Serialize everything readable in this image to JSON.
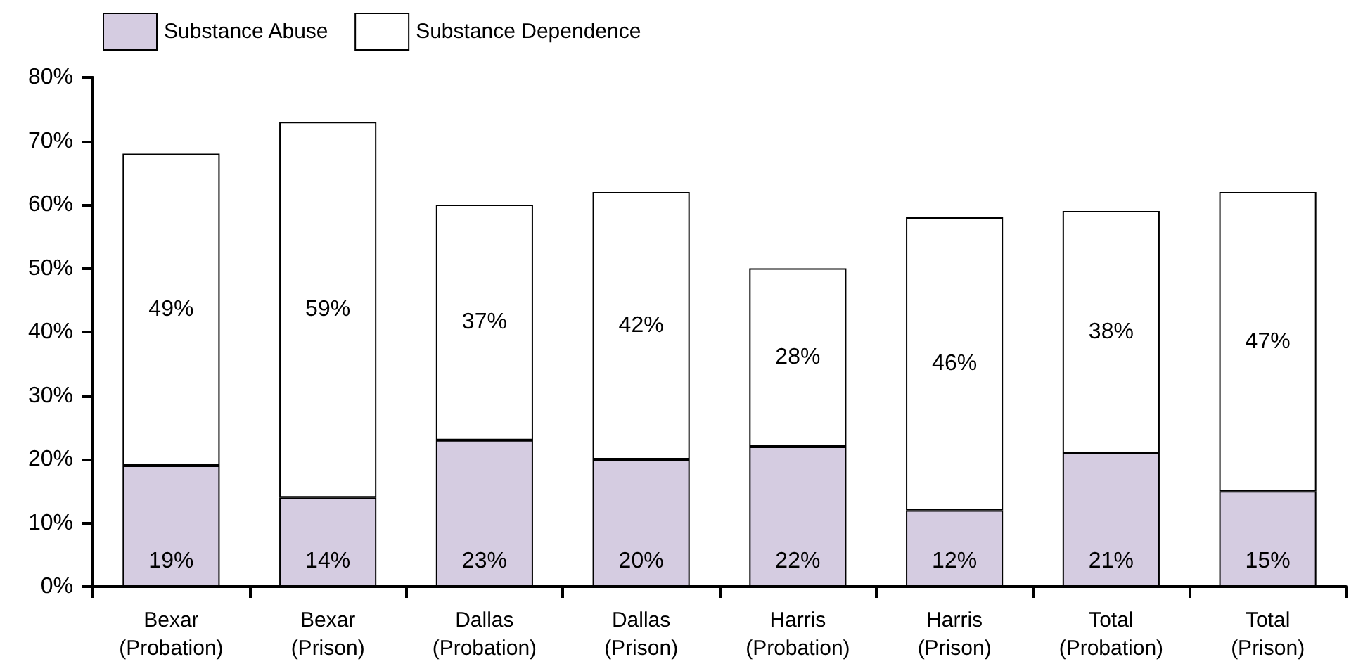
{
  "chart_data": {
    "type": "bar",
    "stacked": true,
    "categories": [
      "Bexar\n(Probation)",
      "Bexar\n(Prison)",
      "Dallas\n(Probation)",
      "Dallas\n(Prison)",
      "Harris\n(Probation)",
      "Harris\n(Prison)",
      "Total\n(Probation)",
      "Total\n(Prison)"
    ],
    "series": [
      {
        "name": "Substance Abuse",
        "color": "#d5cce1",
        "values": [
          19,
          14,
          23,
          20,
          22,
          12,
          21,
          15
        ],
        "value_labels": [
          "19%",
          "14%",
          "23%",
          "20%",
          "22%",
          "12%",
          "21%",
          "15%"
        ]
      },
      {
        "name": "Substance Dependence",
        "color": "#ffffff",
        "values": [
          49,
          59,
          37,
          42,
          28,
          46,
          38,
          47
        ],
        "value_labels": [
          "49%",
          "59%",
          "37%",
          "42%",
          "28%",
          "46%",
          "38%",
          "47%"
        ]
      }
    ],
    "ylim": [
      0,
      80
    ],
    "yticks": [
      {
        "value": 0,
        "label": "0%"
      },
      {
        "value": 10,
        "label": "10%"
      },
      {
        "value": 20,
        "label": "20%"
      },
      {
        "value": 30,
        "label": "30%"
      },
      {
        "value": 40,
        "label": "40%"
      },
      {
        "value": 50,
        "label": "50%"
      },
      {
        "value": 60,
        "label": "60%"
      },
      {
        "value": 70,
        "label": "70%"
      },
      {
        "value": 80,
        "label": "80%"
      }
    ],
    "grid": false,
    "legend": "top left"
  }
}
